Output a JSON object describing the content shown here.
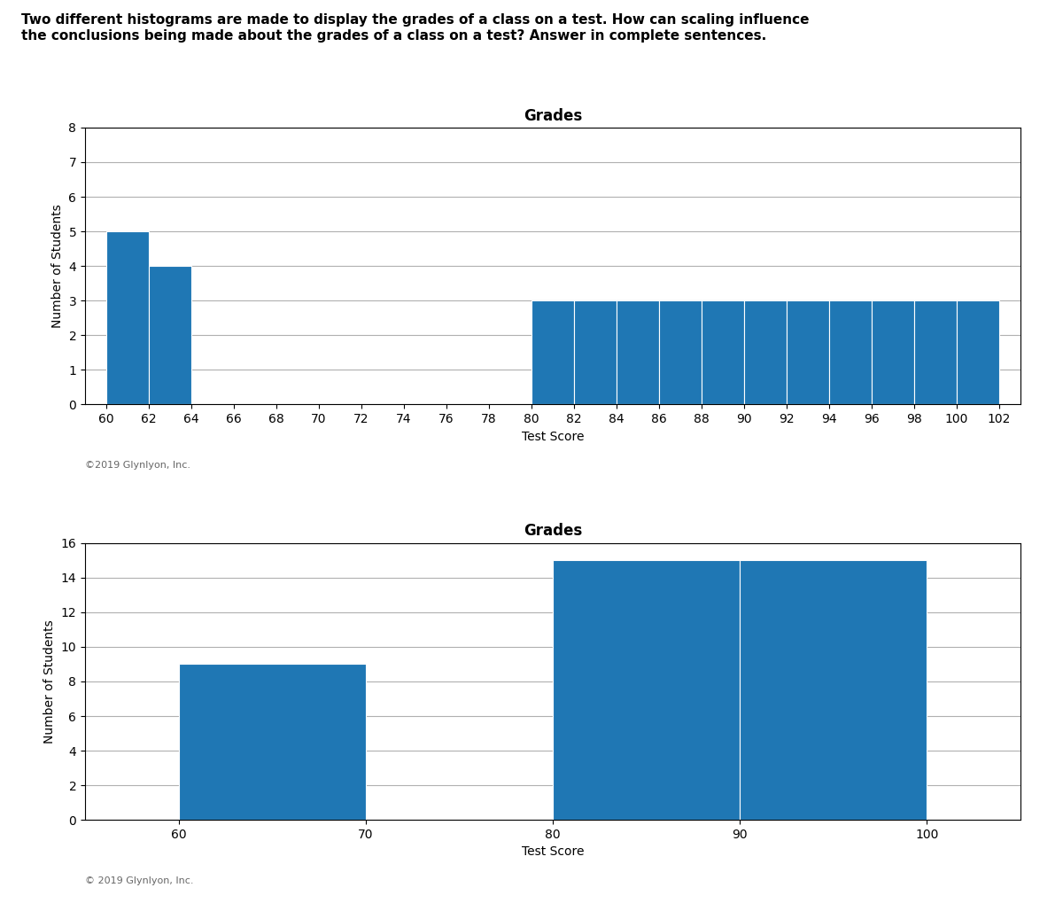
{
  "title": [
    "Two different histograms are made to display the grades of a class on a test. How can scaling influence",
    "the conclusions being made about the grades of a class on a test? Answer in complete sentences."
  ],
  "chart_data": [
    {
      "type": "histogram",
      "title": "Grades",
      "xlabel": "Test Score",
      "ylabel": "Number of Students",
      "bins": [
        60,
        62,
        64,
        66,
        68,
        70,
        72,
        74,
        76,
        78,
        80,
        82,
        84,
        86,
        88,
        90,
        92,
        94,
        96,
        98,
        100,
        102
      ],
      "values": [
        5,
        4,
        0,
        0,
        0,
        0,
        0,
        0,
        0,
        0,
        3,
        3,
        3,
        3,
        3,
        3,
        3,
        3,
        3,
        3,
        3
      ],
      "xlim": [
        59,
        103
      ],
      "xticks": [
        60,
        62,
        64,
        66,
        68,
        70,
        72,
        74,
        76,
        78,
        80,
        82,
        84,
        86,
        88,
        90,
        92,
        94,
        96,
        98,
        100,
        102
      ],
      "ylim": [
        0,
        8
      ],
      "yticks": [
        0,
        1,
        2,
        3,
        4,
        5,
        6,
        7,
        8
      ],
      "grid": true,
      "annotations": [
        "©2019 Glynlyon, Inc."
      ]
    },
    {
      "type": "histogram",
      "title": "Grades",
      "xlabel": "Test Score",
      "ylabel": "Number of Students",
      "bins": [
        60,
        70,
        80,
        90,
        100
      ],
      "values": [
        9,
        0,
        15,
        15
      ],
      "xlim": [
        55,
        105
      ],
      "xticks": [
        60,
        70,
        80,
        90,
        100
      ],
      "ylim": [
        0,
        16
      ],
      "yticks": [
        0,
        2,
        4,
        6,
        8,
        10,
        12,
        14,
        16
      ],
      "grid": true,
      "annotations": [
        "© 2019 Glynlyon, Inc."
      ]
    }
  ]
}
